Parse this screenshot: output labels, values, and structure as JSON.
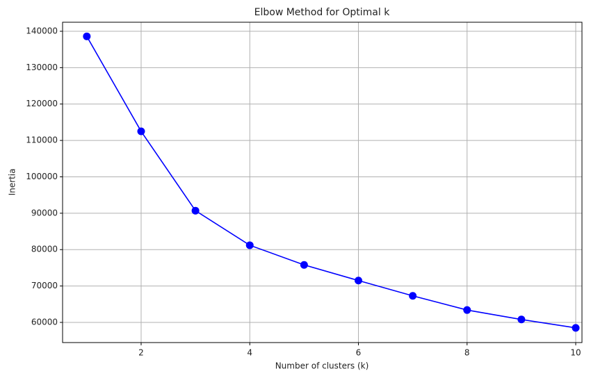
{
  "chart_data": {
    "type": "line",
    "title": "Elbow Method for Optimal k",
    "x_label": "Number of clusters (k)",
    "y_label": "Inertia",
    "x": [
      1,
      2,
      3,
      4,
      5,
      6,
      7,
      8,
      9,
      10
    ],
    "series": [
      {
        "color": "#0000ff",
        "values": [
          138600,
          112500,
          90700,
          81200,
          75800,
          71500,
          67300,
          63400,
          60800,
          58500
        ]
      }
    ],
    "xlim": [
      0.554,
      10.115
    ],
    "xticks": [
      2,
      4,
      6,
      8,
      10
    ],
    "ylim": [
      54460,
      142480
    ],
    "yticks": [
      60000,
      70000,
      80000,
      90000,
      100000,
      110000,
      120000,
      130000,
      140000
    ],
    "grid": true,
    "marker": "circle"
  }
}
